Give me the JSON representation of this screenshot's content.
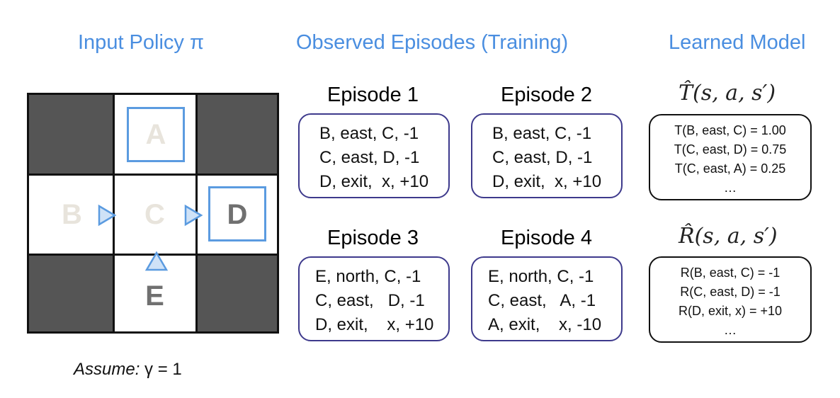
{
  "headings": {
    "policy": "Input Policy π",
    "episodes": "Observed Episodes (Training)",
    "model": "Learned Model"
  },
  "grid": {
    "states": {
      "A": "A",
      "B": "B",
      "C": "C",
      "D": "D",
      "E": "E"
    },
    "policy_arrows": {
      "B": "east",
      "C": "east",
      "E": "north"
    },
    "colors": {
      "wall": "#555555",
      "arrow": "#5b9be0",
      "faded_label": "#e8e4dc",
      "label": "#707070"
    }
  },
  "assume": {
    "prefix": "Assume:",
    "rest": "γ = 1"
  },
  "episodes": [
    {
      "title": "Episode 1",
      "lines": [
        "B, east, C, -1",
        "C, east, D, -1",
        "D, exit,  x, +10"
      ]
    },
    {
      "title": "Episode 2",
      "lines": [
        "B, east, C, -1",
        "C, east, D, -1",
        "D, exit,  x, +10"
      ]
    },
    {
      "title": "Episode 3",
      "lines": [
        "E, north, C, -1",
        "C, east,   D, -1",
        "D, exit,    x, +10"
      ]
    },
    {
      "title": "Episode 4",
      "lines": [
        "E, north, C, -1",
        "C, east,   A, -1",
        "A, exit,    x, -10"
      ]
    }
  ],
  "model": {
    "transition": {
      "title": "T̂(s, a, s′)",
      "lines": [
        "T(B, east, C) = 1.00",
        "T(C, east, D) = 0.75",
        "T(C, east, A) = 0.25",
        "…"
      ]
    },
    "reward": {
      "title": "R̂(s, a, s′)",
      "lines": [
        "R(B, east, C) = -1",
        "R(C, east, D) = -1",
        "R(D, exit, x) = +10",
        "…"
      ]
    }
  }
}
